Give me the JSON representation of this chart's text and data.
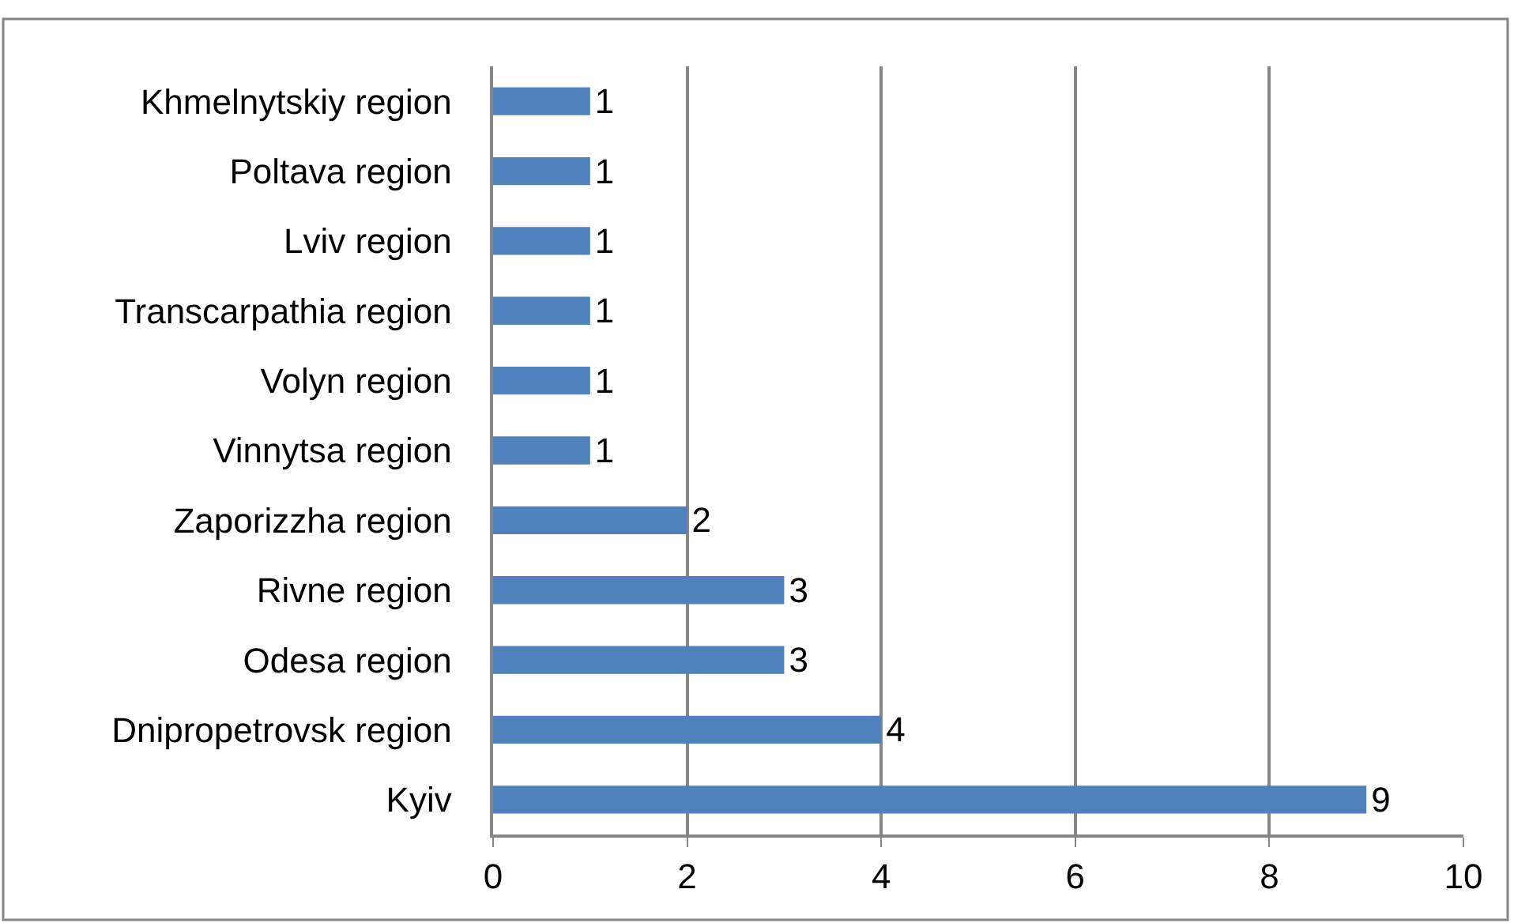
{
  "chart_data": {
    "type": "bar",
    "orientation": "horizontal",
    "categories": [
      "Khmelnytskiy region",
      "Poltava region",
      "Lviv region",
      "Transcarpathia region",
      "Volyn region",
      "Vinnytsa region",
      "Zaporizzha region",
      "Rivne region",
      "Odesa region",
      "Dnipropetrovsk region",
      "Kyiv"
    ],
    "values": [
      1,
      1,
      1,
      1,
      1,
      1,
      2,
      3,
      3,
      4,
      9
    ],
    "color": "#4f81bd",
    "xlim": [
      0,
      10
    ],
    "xticks": [
      0,
      2,
      4,
      6,
      8,
      10
    ],
    "grid": "x",
    "data_labels": true
  }
}
